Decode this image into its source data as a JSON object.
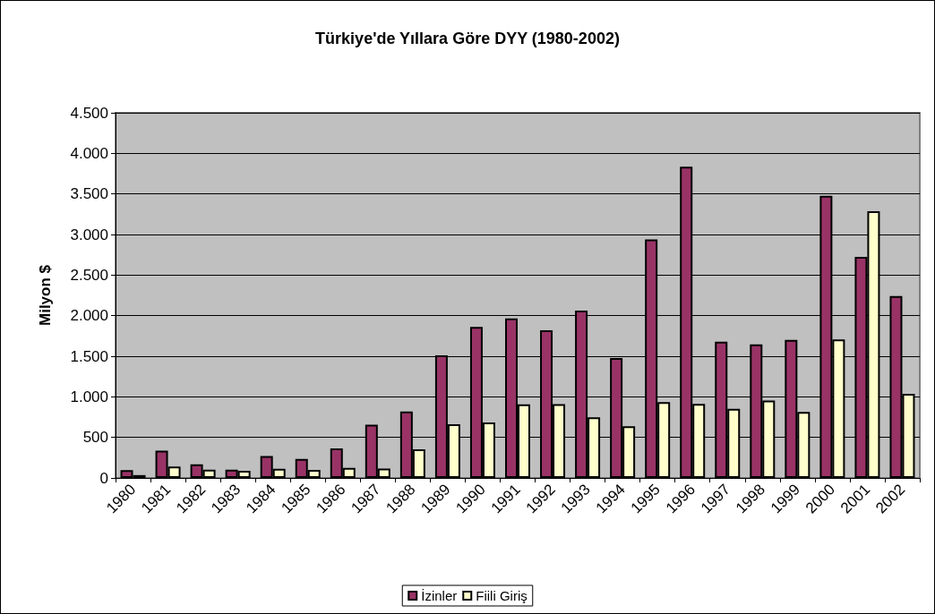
{
  "chart_data": {
    "type": "bar",
    "title": "Türkiye'de Yıllara Göre DYY (1980-2002)",
    "ylabel": "Milyon $",
    "categories": [
      "1980",
      "1981",
      "1982",
      "1983",
      "1984",
      "1985",
      "1986",
      "1987",
      "1988",
      "1989",
      "1990",
      "1991",
      "1992",
      "1993",
      "1994",
      "1995",
      "1996",
      "1997",
      "1998",
      "1999",
      "2000",
      "2001",
      "2002"
    ],
    "series": [
      {
        "name": "İzinler",
        "color": "#993366",
        "values": [
          97,
          337,
          167,
          102,
          271,
          234,
          364,
          655,
          820,
          1512,
          1861,
          1967,
          1820,
          2063,
          1478,
          2938,
          3836,
          1678,
          1646,
          1700,
          3477,
          2725,
          2243
        ]
      },
      {
        "name": "Fiili Giriş",
        "color": "#ffffcc",
        "values": [
          35,
          141,
          103,
          87,
          113,
          99,
          125,
          115,
          354,
          663,
          684,
          907,
          911,
          746,
          636,
          934,
          914,
          852,
          953,
          813,
          1707,
          3288,
          1037
        ]
      }
    ],
    "ylim": [
      0,
      4500
    ],
    "yticks": [
      0,
      500,
      {
        "value": 1000,
        "label": "1.000"
      },
      {
        "value": 1500,
        "label": "1.500"
      },
      {
        "value": 2000,
        "label": "2.000"
      },
      {
        "value": 2500,
        "label": "2.500"
      },
      {
        "value": 3000,
        "label": "3.000"
      },
      {
        "value": 3500,
        "label": "3.500"
      },
      {
        "value": 4000,
        "label": "4.000"
      },
      {
        "value": 4500,
        "label": "4.500"
      }
    ],
    "grid": "y",
    "legend": "bottom"
  }
}
